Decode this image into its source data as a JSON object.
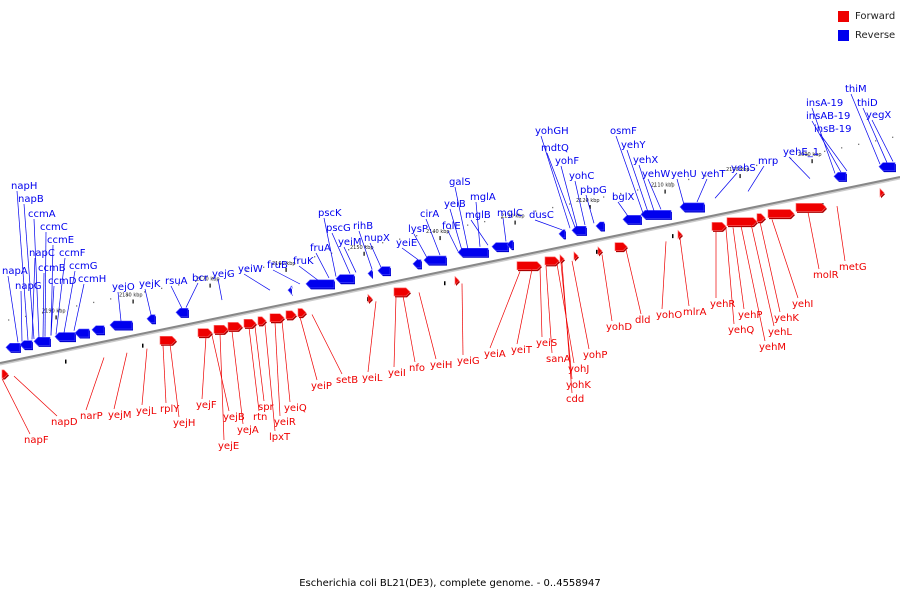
{
  "caption": "Escherichia coli BL21(DE3), complete genome. - 0..4558947",
  "legend": [
    {
      "label": "Forward",
      "color": "#ee0000"
    },
    {
      "label": "Reverse",
      "color": "#0000ee"
    }
  ],
  "colors": {
    "forward": "#ee0000",
    "reverse": "#0000ee",
    "axis": "#888888"
  },
  "scale_labels": [
    "2090 kbp",
    "2100 kbp",
    "2110 kbp",
    "2120 kbp",
    "2130 kbp",
    "2140 kbp",
    "2150 kbp",
    "2160 kbp",
    "2170 kbp",
    "2180 kbp",
    "2190 kbp"
  ],
  "reverse_genes": [
    "napH",
    "napB",
    "ccmA",
    "ccmC",
    "ccmE",
    "ccmF",
    "napC",
    "ccmB",
    "ccmG",
    "napA",
    "napG",
    "ccmD",
    "ccmH",
    "yejO",
    "yejK",
    "rsuA",
    "bcr",
    "yejG",
    "yeiW",
    "fruB",
    "fruK",
    "fruA",
    "pscK",
    "pscG",
    "yeiM",
    "rihB",
    "nupX",
    "yeiE",
    "lysP",
    "cirA",
    "folE",
    "yeiB",
    "galS",
    "mglA",
    "mglB",
    "mglC",
    "dusC",
    "yohGH",
    "mdtQ",
    "yohF",
    "yohC",
    "pbpG",
    "bglX",
    "osmF",
    "yehY",
    "yehX",
    "yehW",
    "yehU",
    "yehT",
    "yehS",
    "mrp",
    "yehE_1",
    "insA-19",
    "insAB-19",
    "insB-19",
    "thiM",
    "thiD",
    "yegX"
  ],
  "forward_genes": [
    "napF",
    "napD",
    "narP",
    "yejM",
    "yejL",
    "rplY",
    "yejH",
    "yejF",
    "yejB",
    "yejE",
    "yejA",
    "rtn",
    "spr",
    "lpxT",
    "yeiR",
    "yeiQ",
    "yeiP",
    "setB",
    "yeiL",
    "yeiI",
    "nfo",
    "yeiH",
    "yeiG",
    "yeiA",
    "yeiT",
    "yeiS",
    "sanA",
    "yohJ",
    "yohK",
    "cdd",
    "yohP",
    "yohD",
    "dld",
    "yohO",
    "mlrA",
    "yehR",
    "yehQ",
    "yehP",
    "yehM",
    "yehL",
    "yehK",
    "yehI",
    "molR",
    "metG"
  ]
}
